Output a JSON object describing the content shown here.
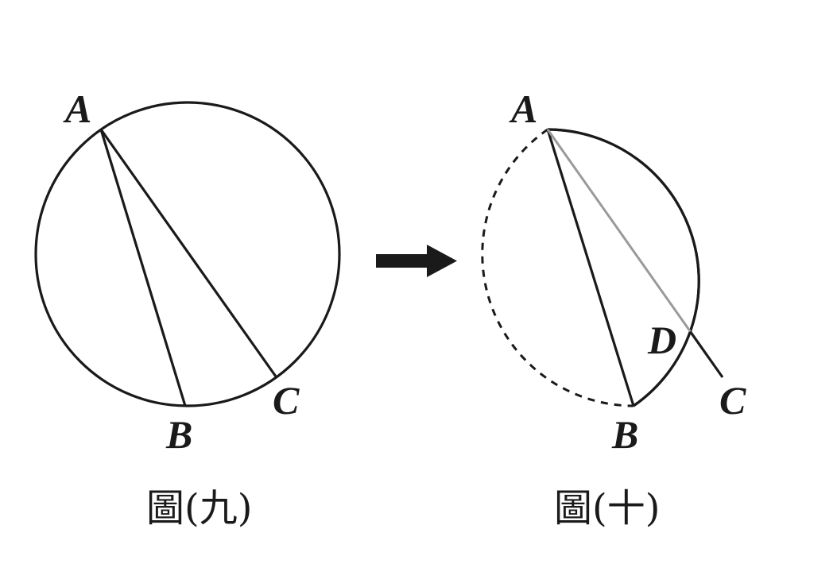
{
  "figure9": {
    "caption": "圖(九)",
    "points": {
      "A": "A",
      "B": "B",
      "C": "C"
    }
  },
  "figure10": {
    "caption": "圖(十)",
    "points": {
      "A": "A",
      "B": "B",
      "C": "C",
      "D": "D"
    }
  },
  "colors": {
    "ink": "#1a1a1a",
    "grey_segment": "#9a9a9a",
    "background": "#ffffff"
  }
}
